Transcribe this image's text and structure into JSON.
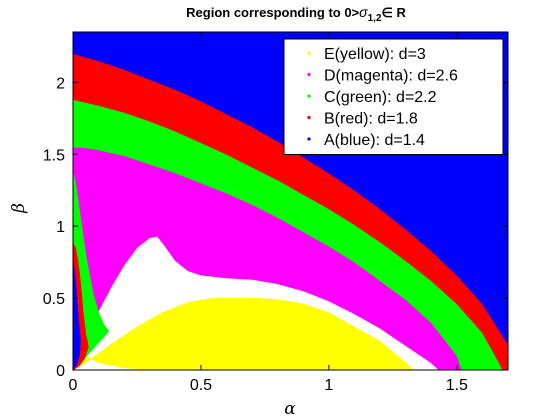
{
  "chart_data": {
    "type": "area",
    "title": {
      "text": "Region corresponding to 0>",
      "sigma": "σ",
      "sub": "1,2",
      "suffix": "∈ R"
    },
    "xlabel": "α",
    "ylabel": "β",
    "xlim": [
      0,
      1.7
    ],
    "ylim": [
      0,
      2.35
    ],
    "xticks": [
      0,
      0.5,
      1,
      1.5
    ],
    "xticklabels": [
      "0",
      "0.5",
      "1",
      "1.5"
    ],
    "yticks": [
      0,
      0.5,
      1,
      1.5,
      2
    ],
    "yticklabels": [
      "0",
      "0.5",
      "1",
      "1.5",
      "2"
    ],
    "grid": false,
    "legend_position": "top-right",
    "series": [
      {
        "name": "E(yellow): d=3",
        "color": "#ffff00",
        "outer": [
          [
            0,
            0.65
          ],
          [
            0.005,
            0.4
          ],
          [
            0.02,
            0.2
          ],
          [
            0.05,
            0.1
          ],
          [
            0.1,
            0.05
          ],
          [
            0.2,
            0.015
          ],
          [
            0.3,
            0.002
          ],
          [
            0.35,
            0
          ]
        ],
        "inner": [
          [
            1.33,
            0
          ],
          [
            1.3,
            0.05
          ],
          [
            1.2,
            0.2
          ],
          [
            1.1,
            0.3
          ],
          [
            1.0,
            0.4
          ],
          [
            0.9,
            0.46
          ],
          [
            0.8,
            0.49
          ],
          [
            0.7,
            0.5
          ],
          [
            0.55,
            0.5
          ],
          [
            0.45,
            0.47
          ],
          [
            0.35,
            0.4
          ],
          [
            0.25,
            0.3
          ],
          [
            0.15,
            0.18
          ],
          [
            0.08,
            0.09
          ],
          [
            0.03,
            0.03
          ],
          [
            0,
            0
          ]
        ]
      },
      {
        "name": "D(magenta): d=2.6",
        "color": "#ff00ff",
        "outer": [
          [
            0,
            1.55
          ],
          [
            0.05,
            1.545
          ],
          [
            0.1,
            1.53
          ],
          [
            0.2,
            1.49
          ],
          [
            0.3,
            1.43
          ],
          [
            0.4,
            1.37
          ],
          [
            0.5,
            1.3
          ],
          [
            0.6,
            1.23
          ],
          [
            0.7,
            1.15
          ],
          [
            0.8,
            1.06
          ],
          [
            0.9,
            0.96
          ],
          [
            1.0,
            0.86
          ],
          [
            1.1,
            0.75
          ],
          [
            1.2,
            0.62
          ],
          [
            1.3,
            0.49
          ],
          [
            1.4,
            0.33
          ],
          [
            1.5,
            0.1
          ],
          [
            1.52,
            0
          ]
        ],
        "inner": [
          [
            1.43,
            0
          ],
          [
            1.4,
            0.05
          ],
          [
            1.3,
            0.17
          ],
          [
            1.2,
            0.29
          ],
          [
            1.1,
            0.39
          ],
          [
            1.0,
            0.48
          ],
          [
            0.9,
            0.55
          ],
          [
            0.8,
            0.6
          ],
          [
            0.7,
            0.63
          ],
          [
            0.6,
            0.64
          ],
          [
            0.5,
            0.66
          ],
          [
            0.45,
            0.69
          ],
          [
            0.4,
            0.76
          ],
          [
            0.36,
            0.86
          ],
          [
            0.33,
            0.93
          ],
          [
            0.3,
            0.92
          ],
          [
            0.25,
            0.85
          ],
          [
            0.2,
            0.73
          ],
          [
            0.15,
            0.58
          ],
          [
            0.1,
            0.41
          ],
          [
            0.06,
            0.26
          ],
          [
            0.04,
            0.16
          ],
          [
            0.02,
            0.08
          ],
          [
            0,
            0
          ]
        ]
      },
      {
        "name": "C(green): d=2.2",
        "color": "#00ff00",
        "outer": [
          [
            0,
            1.88
          ],
          [
            0.1,
            1.84
          ],
          [
            0.2,
            1.79
          ],
          [
            0.3,
            1.73
          ],
          [
            0.4,
            1.66
          ],
          [
            0.5,
            1.58
          ],
          [
            0.6,
            1.5
          ],
          [
            0.7,
            1.41
          ],
          [
            0.8,
            1.32
          ],
          [
            0.9,
            1.22
          ],
          [
            1.0,
            1.12
          ],
          [
            1.1,
            1.01
          ],
          [
            1.2,
            0.89
          ],
          [
            1.3,
            0.76
          ],
          [
            1.4,
            0.62
          ],
          [
            1.5,
            0.46
          ],
          [
            1.6,
            0.26
          ],
          [
            1.65,
            0.1
          ],
          [
            1.68,
            0
          ]
        ],
        "inner": [
          [
            1.52,
            0
          ],
          [
            1.5,
            0.1
          ],
          [
            1.4,
            0.33
          ],
          [
            1.3,
            0.49
          ],
          [
            1.2,
            0.62
          ],
          [
            1.1,
            0.75
          ],
          [
            1.0,
            0.86
          ],
          [
            0.9,
            0.96
          ],
          [
            0.8,
            1.06
          ],
          [
            0.7,
            1.15
          ],
          [
            0.6,
            1.23
          ],
          [
            0.5,
            1.3
          ],
          [
            0.4,
            1.37
          ],
          [
            0.3,
            1.43
          ],
          [
            0.2,
            1.49
          ],
          [
            0.1,
            1.53
          ],
          [
            0.05,
            1.545
          ],
          [
            0,
            1.55
          ],
          [
            0,
            1.38
          ],
          [
            0.01,
            1.3
          ],
          [
            0.03,
            1.05
          ],
          [
            0.05,
            0.8
          ],
          [
            0.08,
            0.52
          ],
          [
            0.1,
            0.4
          ],
          [
            0.12,
            0.32
          ],
          [
            0.14,
            0.27
          ],
          [
            0.1,
            0.19
          ],
          [
            0.06,
            0.11
          ],
          [
            0.03,
            0.05
          ],
          [
            0,
            0
          ]
        ]
      },
      {
        "name": "B(red): d=1.8",
        "color": "#ff0000",
        "outer": [
          [
            0,
            2.2
          ],
          [
            0.1,
            2.15
          ],
          [
            0.2,
            2.09
          ],
          [
            0.3,
            2.02
          ],
          [
            0.4,
            1.95
          ],
          [
            0.5,
            1.87
          ],
          [
            0.6,
            1.78
          ],
          [
            0.7,
            1.69
          ],
          [
            0.8,
            1.59
          ],
          [
            0.9,
            1.48
          ],
          [
            1.0,
            1.37
          ],
          [
            1.1,
            1.25
          ],
          [
            1.2,
            1.12
          ],
          [
            1.3,
            0.98
          ],
          [
            1.4,
            0.83
          ],
          [
            1.5,
            0.66
          ],
          [
            1.6,
            0.46
          ],
          [
            1.7,
            0.18
          ],
          [
            1.7,
            0
          ]
        ],
        "inner": [
          [
            1.68,
            0
          ],
          [
            1.65,
            0.1
          ],
          [
            1.6,
            0.26
          ],
          [
            1.5,
            0.46
          ],
          [
            1.4,
            0.62
          ],
          [
            1.3,
            0.76
          ],
          [
            1.2,
            0.89
          ],
          [
            1.1,
            1.01
          ],
          [
            1.0,
            1.12
          ],
          [
            0.9,
            1.22
          ],
          [
            0.8,
            1.32
          ],
          [
            0.7,
            1.41
          ],
          [
            0.6,
            1.5
          ],
          [
            0.5,
            1.58
          ],
          [
            0.4,
            1.66
          ],
          [
            0.3,
            1.73
          ],
          [
            0.2,
            1.79
          ],
          [
            0.1,
            1.84
          ],
          [
            0,
            1.88
          ],
          [
            0,
            0.88
          ],
          [
            0.01,
            0.85
          ],
          [
            0.02,
            0.75
          ],
          [
            0.03,
            0.6
          ],
          [
            0.04,
            0.4
          ],
          [
            0.05,
            0.25
          ],
          [
            0.06,
            0.16
          ],
          [
            0.045,
            0.08
          ],
          [
            0.025,
            0.03
          ],
          [
            0,
            0
          ]
        ]
      },
      {
        "name": "A(blue): d=1.4",
        "color": "#0000ff",
        "outer": [
          [
            0,
            2.35
          ],
          [
            1.7,
            2.35
          ],
          [
            1.7,
            0.18
          ],
          [
            1.6,
            0.46
          ],
          [
            1.5,
            0.66
          ],
          [
            1.4,
            0.83
          ],
          [
            1.3,
            0.98
          ],
          [
            1.2,
            1.12
          ],
          [
            1.1,
            1.25
          ],
          [
            1.0,
            1.37
          ],
          [
            0.9,
            1.48
          ],
          [
            0.8,
            1.59
          ],
          [
            0.7,
            1.69
          ],
          [
            0.6,
            1.78
          ],
          [
            0.5,
            1.87
          ],
          [
            0.4,
            1.95
          ],
          [
            0.3,
            2.02
          ],
          [
            0.2,
            2.09
          ],
          [
            0.1,
            2.15
          ],
          [
            0,
            2.2
          ]
        ],
        "inner": [
          [
            0,
            0.75
          ],
          [
            0.005,
            0.7
          ],
          [
            0.01,
            0.62
          ],
          [
            0.015,
            0.5
          ],
          [
            0.02,
            0.38
          ],
          [
            0.025,
            0.28
          ],
          [
            0.03,
            0.2
          ],
          [
            0.025,
            0.1
          ],
          [
            0.015,
            0.04
          ],
          [
            0,
            0
          ]
        ]
      }
    ]
  }
}
